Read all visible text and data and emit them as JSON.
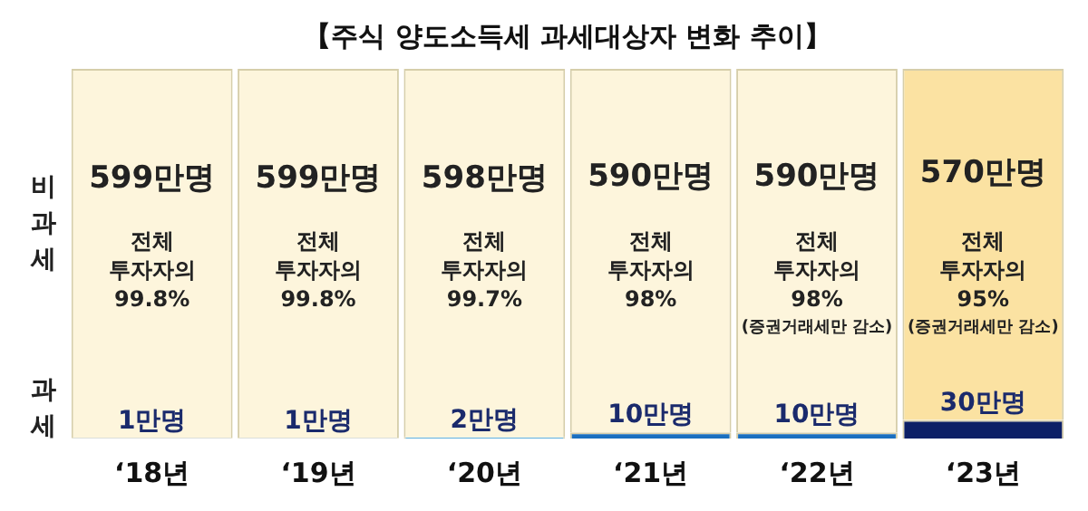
{
  "chart_data": {
    "type": "bar",
    "title": "【주식 양도소득세 과세대상자 변화 추이】",
    "stacked": true,
    "tick_labels": "x",
    "grid": false,
    "legend": false,
    "categories": [
      "‘18년",
      "‘19년",
      "‘20년",
      "‘21년",
      "‘22년",
      "‘23년"
    ],
    "series": [
      {
        "name": "과세",
        "colors": [
          "#7f9fc8",
          "#7f9fc8",
          "#2b9ad8",
          "#1a6fc0",
          "#1a6fc0",
          "#0c1f66"
        ],
        "values": [
          1,
          1,
          2,
          10,
          10,
          30
        ],
        "value_labels": [
          "1만명",
          "1만명",
          "2만명",
          "10만명",
          "10만명",
          "30만명"
        ]
      },
      {
        "name": "비과세",
        "colors": [
          "#fdf5dc",
          "#fdf5dc",
          "#fdf5dc",
          "#fdf5dc",
          "#fdf5dc",
          "#fbe2a2"
        ],
        "values": [
          599,
          599,
          598,
          590,
          590,
          570
        ],
        "value_labels": [
          "599만명",
          "599만명",
          "598만명",
          "590만명",
          "590만명",
          "570만명"
        ]
      }
    ],
    "annotations": [
      "전체\n투자자의\n99.8%",
      "전체\n투자자의\n99.8%",
      "전체\n투자자의\n99.7%",
      "전체\n투자자의\n98%",
      "전체\n투자자의\n98%\n(증권거래세만 감소)",
      "전체\n투자자의\n95%\n(증권거래세만 감소)"
    ]
  }
}
